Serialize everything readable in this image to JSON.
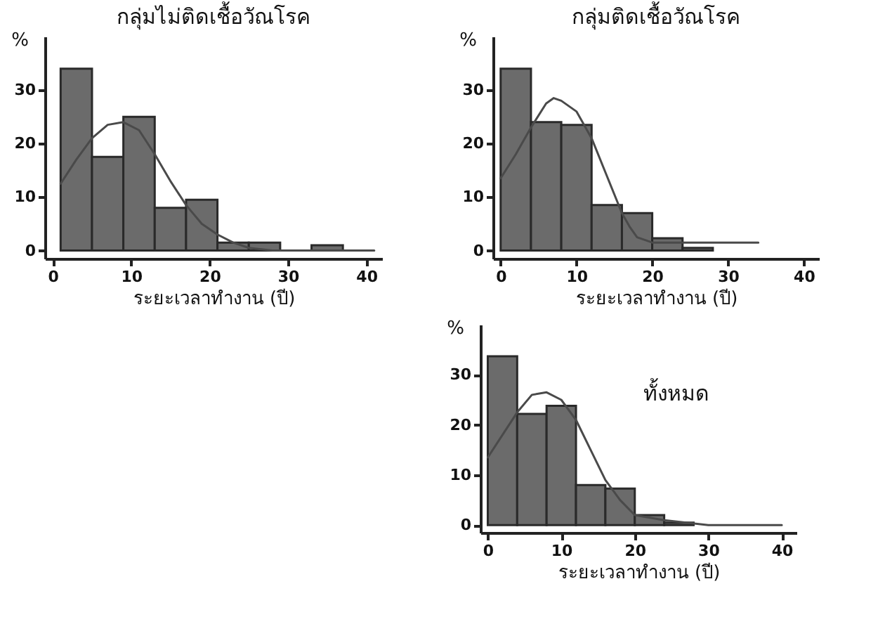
{
  "chart_data": [
    {
      "type": "histogram",
      "title": "กลุ่มไม่ติดเชื้อวัณโรค",
      "xlabel": "ระยะเวลาทำงาน (ปี)",
      "ylabel": "%",
      "bins": [
        1,
        5,
        9,
        13,
        17,
        21,
        25,
        29,
        33,
        37
      ],
      "values": [
        34,
        17.5,
        25,
        8,
        9.5,
        1.5,
        1.5,
        0,
        1
      ],
      "color": "#6b6b6b",
      "series": [
        {
          "type": "line",
          "color": "#4a4a4a",
          "x": [
            1,
            3,
            5,
            7,
            9,
            11,
            13,
            15,
            17,
            19,
            21,
            23,
            25,
            28,
            41
          ],
          "values": [
            12.5,
            17,
            21,
            23.5,
            24,
            22.5,
            18,
            13,
            8.5,
            5,
            3,
            1.5,
            0.5,
            0,
            0
          ]
        }
      ],
      "xlim": [
        -1,
        42
      ],
      "ylim": [
        -1.5,
        40
      ],
      "xticks": [
        0,
        10,
        20,
        30,
        40
      ],
      "yticks": [
        0,
        10,
        20,
        30
      ],
      "grid": false
    },
    {
      "type": "histogram",
      "title": "กลุ่มติดเชื้อวัณโรค",
      "xlabel": "ระยะเวลาทำงาน (ปี)",
      "ylabel": "%",
      "bins": [
        0,
        4,
        8,
        12,
        16,
        20,
        24,
        28
      ],
      "values": [
        34,
        24,
        23.5,
        8.5,
        7,
        2.3,
        0.5
      ],
      "color": "#6b6b6b",
      "series": [
        {
          "type": "line",
          "color": "#4a4a4a",
          "x": [
            0,
            2,
            4,
            6,
            7,
            8,
            10,
            12,
            14,
            16,
            17,
            18,
            20,
            34
          ],
          "values": [
            13.5,
            18,
            23,
            27.5,
            28.5,
            28,
            26,
            21,
            14,
            7,
            4.5,
            2.5,
            1.5,
            1.5
          ]
        }
      ],
      "xlim": [
        -1,
        42
      ],
      "ylim": [
        -1.5,
        40
      ],
      "xticks": [
        0,
        10,
        20,
        30,
        40
      ],
      "yticks": [
        0,
        10,
        20,
        30
      ],
      "grid": false
    },
    {
      "type": "histogram",
      "xlabel": "ระยะเวลาทำงาน (ปี)",
      "ylabel": "%",
      "annotations": [
        "ทั้งหมด"
      ],
      "bins": [
        0,
        4,
        8,
        12,
        16,
        20,
        24,
        28
      ],
      "values": [
        33.7,
        22.2,
        23.8,
        8,
        7.3,
        2,
        0.5
      ],
      "color": "#6b6b6b",
      "series": [
        {
          "type": "line",
          "color": "#4a4a4a",
          "x": [
            0,
            2,
            4,
            6,
            8,
            10,
            12,
            14,
            16,
            18,
            20,
            24,
            30,
            40
          ],
          "values": [
            13.5,
            18,
            22.5,
            26,
            26.5,
            25,
            21,
            15,
            9,
            5,
            2,
            1,
            0,
            0
          ]
        }
      ],
      "xlim": [
        -1,
        42
      ],
      "ylim": [
        -1.5,
        40
      ],
      "xticks": [
        0,
        10,
        20,
        30,
        40
      ],
      "yticks": [
        0,
        10,
        20,
        30
      ],
      "grid": false
    }
  ]
}
